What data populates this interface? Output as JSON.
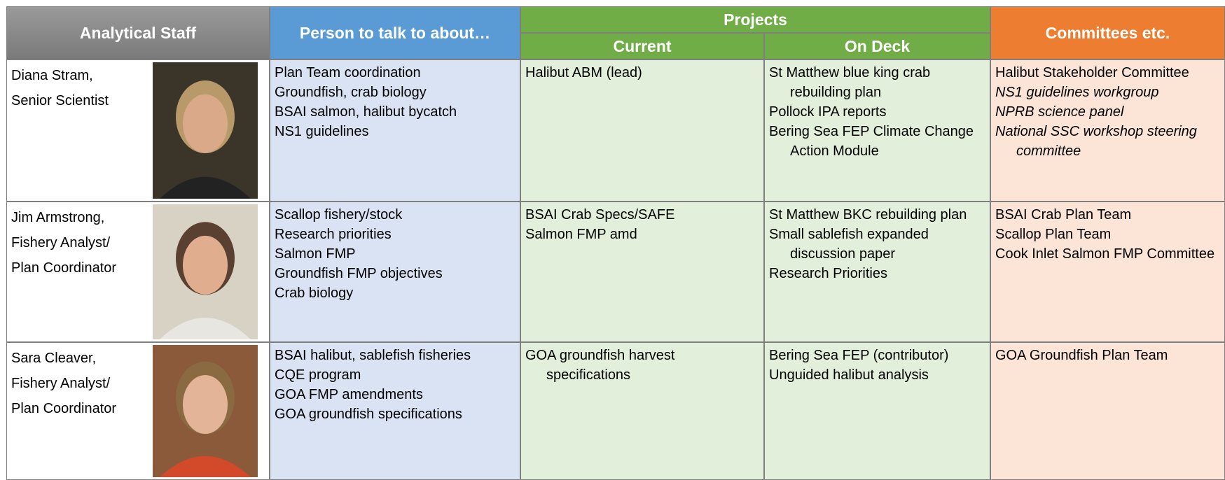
{
  "header": {
    "analytical_staff": "Analytical Staff",
    "person_to_talk": "Person to talk to about…",
    "projects": "Projects",
    "current": "Current",
    "on_deck": "On Deck",
    "committees": "Committees etc."
  },
  "rows": [
    {
      "staff": [
        "Diana Stram,",
        "Senior Scientist"
      ],
      "talk": [
        "Plan Team coordination",
        "Groundfish, crab biology",
        "BSAI salmon, halibut bycatch",
        "NS1 guidelines"
      ],
      "current": [
        "Halibut ABM (lead)"
      ],
      "on_deck": [
        "St Matthew blue king crab rebuilding plan",
        "Pollock IPA reports",
        "Bering Sea FEP Climate Change Action Module"
      ],
      "committees": [
        {
          "text": "Halibut Stakeholder Committee",
          "italic": false
        },
        {
          "text": "NS1 guidelines workgroup",
          "italic": true
        },
        {
          "text": "NPRB science panel",
          "italic": true
        },
        {
          "text": "National SSC workshop steering committee",
          "italic": true
        }
      ]
    },
    {
      "staff": [
        "Jim Armstrong,",
        "Fishery Analyst/",
        "Plan Coordinator"
      ],
      "talk": [
        "Scallop fishery/stock",
        "Research priorities",
        "Salmon FMP",
        "Groundfish FMP objectives",
        "Crab biology"
      ],
      "current": [
        "BSAI Crab Specs/SAFE",
        "Salmon FMP amd"
      ],
      "on_deck": [
        "St Matthew BKC rebuilding plan",
        "Small sablefish expanded discussion paper",
        "Research Priorities"
      ],
      "committees": [
        {
          "text": "BSAI Crab Plan Team",
          "italic": false
        },
        {
          "text": "Scallop Plan Team",
          "italic": false
        },
        {
          "text": "Cook Inlet Salmon FMP Committee",
          "italic": false
        }
      ]
    },
    {
      "staff": [
        "Sara Cleaver,",
        "Fishery Analyst/",
        "Plan Coordinator"
      ],
      "talk": [
        "BSAI halibut, sablefish fisheries",
        "CQE program",
        "GOA FMP amendments",
        "GOA groundfish specifications"
      ],
      "current": [
        "GOA groundfish harvest specifications"
      ],
      "on_deck": [
        "Bering Sea FEP (contributor)",
        "Unguided halibut analysis"
      ],
      "committees": [
        {
          "text": "GOA Groundfish Plan Team",
          "italic": false
        }
      ]
    }
  ]
}
